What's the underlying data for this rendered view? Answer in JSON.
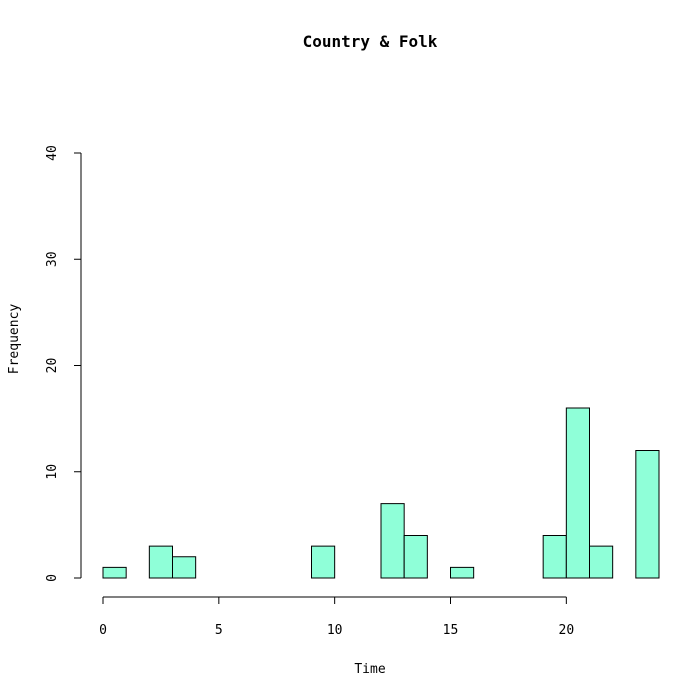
{
  "chart_data": {
    "type": "bar",
    "title": "Country & Folk",
    "xlabel": "Time",
    "ylabel": "Frequency",
    "xlim": [
      0,
      24
    ],
    "ylim": [
      0,
      40
    ],
    "x_ticks": [
      0,
      5,
      10,
      15,
      20
    ],
    "y_ticks": [
      0,
      10,
      20,
      30,
      40
    ],
    "bin_width": 1,
    "bins": [
      {
        "start": 0,
        "end": 1,
        "count": 1
      },
      {
        "start": 1,
        "end": 2,
        "count": 0
      },
      {
        "start": 2,
        "end": 3,
        "count": 3
      },
      {
        "start": 3,
        "end": 4,
        "count": 2
      },
      {
        "start": 4,
        "end": 5,
        "count": 0
      },
      {
        "start": 5,
        "end": 6,
        "count": 0
      },
      {
        "start": 6,
        "end": 7,
        "count": 0
      },
      {
        "start": 7,
        "end": 8,
        "count": 0
      },
      {
        "start": 8,
        "end": 9,
        "count": 0
      },
      {
        "start": 9,
        "end": 10,
        "count": 3
      },
      {
        "start": 10,
        "end": 11,
        "count": 0
      },
      {
        "start": 11,
        "end": 12,
        "count": 0
      },
      {
        "start": 12,
        "end": 13,
        "count": 7
      },
      {
        "start": 13,
        "end": 14,
        "count": 4
      },
      {
        "start": 14,
        "end": 15,
        "count": 0
      },
      {
        "start": 15,
        "end": 16,
        "count": 1
      },
      {
        "start": 16,
        "end": 17,
        "count": 0
      },
      {
        "start": 17,
        "end": 18,
        "count": 0
      },
      {
        "start": 18,
        "end": 19,
        "count": 0
      },
      {
        "start": 19,
        "end": 20,
        "count": 4
      },
      {
        "start": 20,
        "end": 21,
        "count": 16
      },
      {
        "start": 21,
        "end": 22,
        "count": 3
      },
      {
        "start": 22,
        "end": 23,
        "count": 0
      },
      {
        "start": 23,
        "end": 24,
        "count": 12
      }
    ],
    "bar_color": "#8fffd8",
    "grid": false,
    "legend": "none"
  }
}
